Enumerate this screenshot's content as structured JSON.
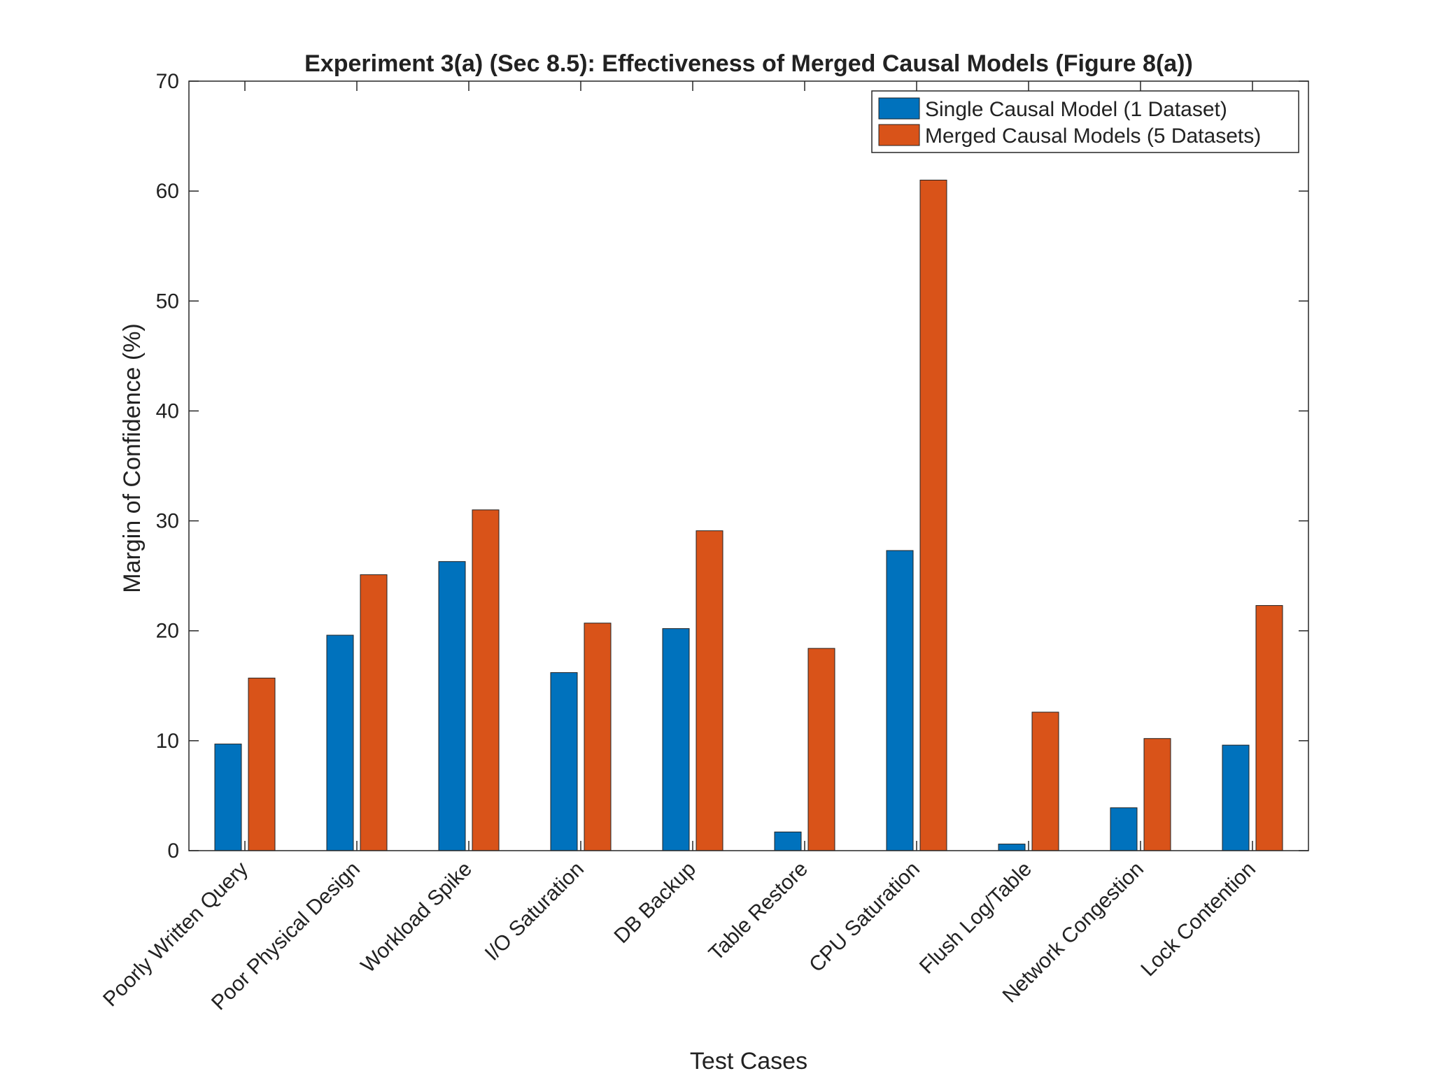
{
  "chart_data": {
    "type": "bar",
    "title": "Experiment 3(a) (Sec 8.5): Effectiveness of Merged Causal Models (Figure 8(a))",
    "xlabel": "Test Cases",
    "ylabel": "Margin of Confidence (%)",
    "ylim": [
      0,
      70
    ],
    "yticks": [
      0,
      10,
      20,
      30,
      40,
      50,
      60,
      70
    ],
    "categories": [
      "Poorly Written Query",
      "Poor Physical Design",
      "Workload Spike",
      "I/O Saturation",
      "DB Backup",
      "Table Restore",
      "CPU Saturation",
      "Flush Log/Table",
      "Network Congestion",
      "Lock Contention"
    ],
    "series": [
      {
        "name": "Single Causal Model (1 Dataset)",
        "color": "#0072BD",
        "values": [
          9.7,
          19.6,
          26.3,
          16.2,
          20.2,
          1.7,
          27.3,
          0.6,
          3.9,
          9.6
        ]
      },
      {
        "name": "Merged Causal Models (5 Datasets)",
        "color": "#D95319",
        "values": [
          15.7,
          25.1,
          31.0,
          20.7,
          29.1,
          18.4,
          61.0,
          12.6,
          10.2,
          22.3
        ]
      }
    ],
    "legend_position": "top-right",
    "grid": false
  }
}
